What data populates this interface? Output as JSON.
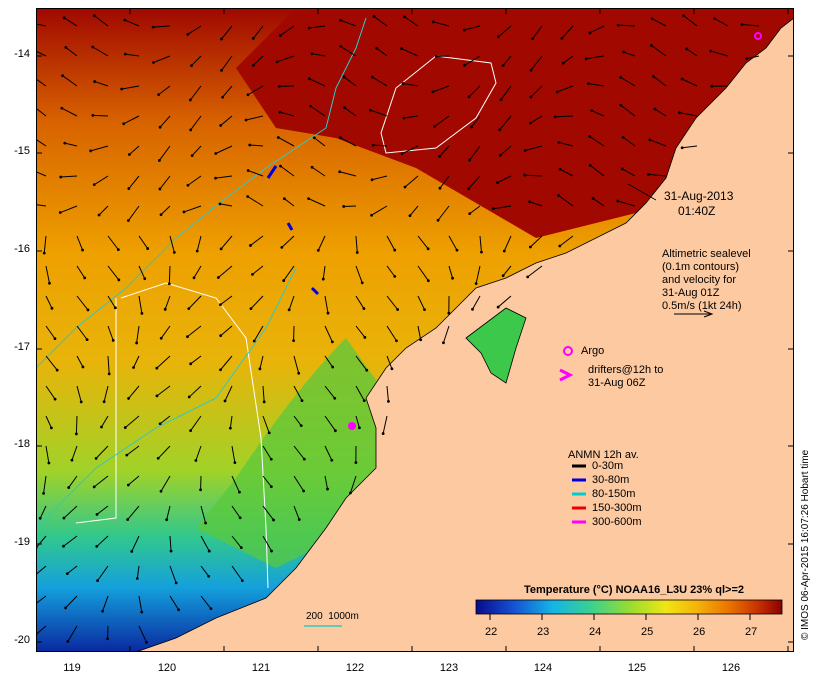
{
  "map": {
    "y_axis_labels": [
      "-14",
      "-15",
      "-16",
      "-17",
      "-18",
      "-19",
      "-20"
    ],
    "x_axis_labels": [
      "119",
      "120",
      "121",
      "122",
      "123",
      "124",
      "125",
      "126"
    ]
  },
  "annotations": {
    "date": "31-Aug-2013",
    "time": "01:40Z",
    "altimetric": "Altimetric sealevel\n(0.1m contours)\nand velocity for\n31-Aug 01Z\n0.5m/s (1kt 24h)",
    "argo": "Argo",
    "drifters": "drifters@12h to\n31-Aug 06Z",
    "bathy": "200  1000m"
  },
  "legend": {
    "title": "ANMN 12h av.",
    "items": [
      {
        "label": "0-30m",
        "color": "#000000"
      },
      {
        "label": "30-80m",
        "color": "#0000dd"
      },
      {
        "label": "80-150m",
        "color": "#00cccc"
      },
      {
        "label": "150-300m",
        "color": "#ee0000"
      },
      {
        "label": "300-600m",
        "color": "#ff00ff"
      }
    ]
  },
  "colorbar": {
    "title": "Temperature (°C) NOAA16_L3U 23% ql>=2",
    "ticks": [
      "22",
      "23",
      "24",
      "25",
      "26",
      "27"
    ],
    "colors": [
      "#0a0a8c",
      "#1450d2",
      "#14b4e6",
      "#3cd28c",
      "#96dc32",
      "#f0e614",
      "#f5b40a",
      "#eb7800",
      "#c83200",
      "#8c0000"
    ]
  },
  "credit": "© IMOS 06-Apr-2015 16:07:26 Hobart time"
}
